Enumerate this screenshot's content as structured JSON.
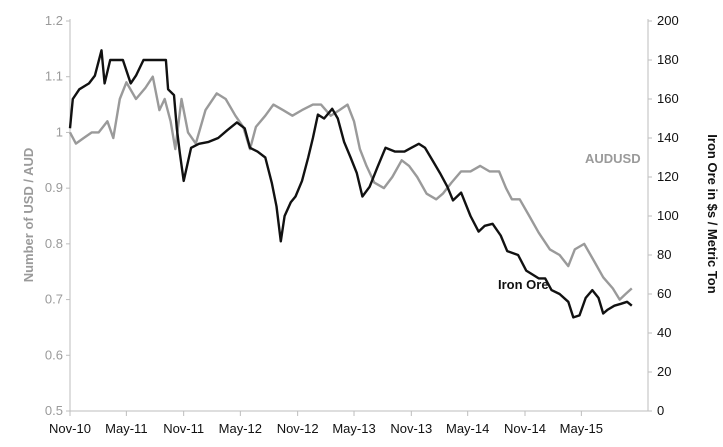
{
  "chart_data": {
    "type": "line",
    "x_ticks": [
      "Nov-10",
      "May-11",
      "Nov-11",
      "May-12",
      "Nov-12",
      "May-13",
      "Nov-13",
      "May-14",
      "Nov-14",
      "May-15"
    ],
    "ylabel_left": "Number of USD / AUD",
    "ylabel_right": "Iron Ore in $s / Metric Ton",
    "ylim_left": [
      0.5,
      1.2
    ],
    "ylim_right": [
      0,
      200
    ],
    "yticks_left": [
      "0.5",
      "0.6",
      "0.7",
      "0.8",
      "0.9",
      "1",
      "1.1",
      "1.2"
    ],
    "yticks_right": [
      "0",
      "20",
      "40",
      "60",
      "80",
      "100",
      "120",
      "140",
      "160",
      "180",
      "200"
    ],
    "grid": false,
    "series": [
      {
        "name": "AUDUSD",
        "axis": "left",
        "color": "#9a9a9a",
        "points": [
          [
            "2010-11-01",
            1.0
          ],
          [
            "2010-11-20",
            0.98
          ],
          [
            "2010-12-15",
            0.99
          ],
          [
            "2011-01-10",
            1.0
          ],
          [
            "2011-02-01",
            1.0
          ],
          [
            "2011-03-01",
            1.02
          ],
          [
            "2011-03-20",
            0.99
          ],
          [
            "2011-04-10",
            1.06
          ],
          [
            "2011-05-01",
            1.09
          ],
          [
            "2011-06-01",
            1.06
          ],
          [
            "2011-07-01",
            1.08
          ],
          [
            "2011-07-25",
            1.1
          ],
          [
            "2011-08-15",
            1.04
          ],
          [
            "2011-09-01",
            1.06
          ],
          [
            "2011-09-20",
            1.02
          ],
          [
            "2011-10-05",
            0.97
          ],
          [
            "2011-10-25",
            1.06
          ],
          [
            "2011-11-15",
            1.0
          ],
          [
            "2011-12-10",
            0.98
          ],
          [
            "2012-01-10",
            1.04
          ],
          [
            "2012-02-15",
            1.07
          ],
          [
            "2012-03-15",
            1.06
          ],
          [
            "2012-04-15",
            1.03
          ],
          [
            "2012-05-10",
            1.01
          ],
          [
            "2012-06-01",
            0.97
          ],
          [
            "2012-06-20",
            1.01
          ],
          [
            "2012-07-20",
            1.03
          ],
          [
            "2012-08-15",
            1.05
          ],
          [
            "2012-09-15",
            1.04
          ],
          [
            "2012-10-15",
            1.03
          ],
          [
            "2012-11-15",
            1.04
          ],
          [
            "2012-12-20",
            1.05
          ],
          [
            "2013-01-15",
            1.05
          ],
          [
            "2013-02-15",
            1.03
          ],
          [
            "2013-03-15",
            1.04
          ],
          [
            "2013-04-10",
            1.05
          ],
          [
            "2013-05-01",
            1.02
          ],
          [
            "2013-05-20",
            0.97
          ],
          [
            "2013-06-10",
            0.94
          ],
          [
            "2013-07-05",
            0.91
          ],
          [
            "2013-08-05",
            0.9
          ],
          [
            "2013-09-01",
            0.92
          ],
          [
            "2013-10-01",
            0.95
          ],
          [
            "2013-10-25",
            0.94
          ],
          [
            "2013-11-20",
            0.92
          ],
          [
            "2013-12-20",
            0.89
          ],
          [
            "2014-01-20",
            0.88
          ],
          [
            "2014-02-10",
            0.89
          ],
          [
            "2014-03-10",
            0.91
          ],
          [
            "2014-04-10",
            0.93
          ],
          [
            "2014-05-10",
            0.93
          ],
          [
            "2014-06-10",
            0.94
          ],
          [
            "2014-07-10",
            0.93
          ],
          [
            "2014-08-10",
            0.93
          ],
          [
            "2014-09-01",
            0.9
          ],
          [
            "2014-09-20",
            0.88
          ],
          [
            "2014-10-15",
            0.88
          ],
          [
            "2014-11-15",
            0.85
          ],
          [
            "2014-12-15",
            0.82
          ],
          [
            "2015-01-20",
            0.79
          ],
          [
            "2015-02-20",
            0.78
          ],
          [
            "2015-03-20",
            0.76
          ],
          [
            "2015-04-10",
            0.79
          ],
          [
            "2015-05-10",
            0.8
          ],
          [
            "2015-06-10",
            0.77
          ],
          [
            "2015-07-10",
            0.74
          ],
          [
            "2015-08-10",
            0.72
          ],
          [
            "2015-09-01",
            0.7
          ],
          [
            "2015-09-20",
            0.71
          ],
          [
            "2015-10-10",
            0.72
          ]
        ]
      },
      {
        "name": "Iron Ore",
        "axis": "right",
        "color": "#111111",
        "points": [
          [
            "2010-11-01",
            145
          ],
          [
            "2010-11-10",
            160
          ],
          [
            "2010-12-01",
            165
          ],
          [
            "2011-01-01",
            168
          ],
          [
            "2011-01-20",
            172
          ],
          [
            "2011-02-10",
            185
          ],
          [
            "2011-02-20",
            168
          ],
          [
            "2011-03-10",
            180
          ],
          [
            "2011-04-20",
            180
          ],
          [
            "2011-05-15",
            168
          ],
          [
            "2011-06-01",
            172
          ],
          [
            "2011-06-25",
            180
          ],
          [
            "2011-08-01",
            180
          ],
          [
            "2011-09-05",
            180
          ],
          [
            "2011-09-12",
            165
          ],
          [
            "2011-10-01",
            162
          ],
          [
            "2011-10-10",
            145
          ],
          [
            "2011-10-20",
            132
          ],
          [
            "2011-11-01",
            118
          ],
          [
            "2011-11-25",
            135
          ],
          [
            "2011-12-20",
            137
          ],
          [
            "2012-01-20",
            138
          ],
          [
            "2012-02-20",
            140
          ],
          [
            "2012-03-20",
            144
          ],
          [
            "2012-04-20",
            148
          ],
          [
            "2012-05-15",
            145
          ],
          [
            "2012-06-01",
            135
          ],
          [
            "2012-06-25",
            133
          ],
          [
            "2012-07-20",
            130
          ],
          [
            "2012-08-10",
            117
          ],
          [
            "2012-08-25",
            105
          ],
          [
            "2012-09-08",
            87
          ],
          [
            "2012-09-20",
            100
          ],
          [
            "2012-10-10",
            107
          ],
          [
            "2012-10-25",
            110
          ],
          [
            "2012-11-15",
            118
          ],
          [
            "2012-12-05",
            130
          ],
          [
            "2012-12-20",
            140
          ],
          [
            "2013-01-05",
            152
          ],
          [
            "2013-01-25",
            150
          ],
          [
            "2013-02-20",
            155
          ],
          [
            "2013-03-10",
            150
          ],
          [
            "2013-03-30",
            138
          ],
          [
            "2013-04-20",
            130
          ],
          [
            "2013-05-10",
            122
          ],
          [
            "2013-05-28",
            110
          ],
          [
            "2013-06-20",
            115
          ],
          [
            "2013-07-15",
            125
          ],
          [
            "2013-08-10",
            135
          ],
          [
            "2013-09-10",
            133
          ],
          [
            "2013-10-10",
            133
          ],
          [
            "2013-11-01",
            135
          ],
          [
            "2013-11-25",
            137
          ],
          [
            "2013-12-15",
            135
          ],
          [
            "2014-01-10",
            128
          ],
          [
            "2014-02-01",
            122
          ],
          [
            "2014-02-25",
            115
          ],
          [
            "2014-03-15",
            108
          ],
          [
            "2014-04-10",
            112
          ],
          [
            "2014-05-10",
            100
          ],
          [
            "2014-06-05",
            92
          ],
          [
            "2014-06-25",
            95
          ],
          [
            "2014-07-20",
            96
          ],
          [
            "2014-08-15",
            90
          ],
          [
            "2014-09-05",
            82
          ],
          [
            "2014-10-10",
            80
          ],
          [
            "2014-11-05",
            72
          ],
          [
            "2014-11-25",
            70
          ],
          [
            "2014-12-15",
            68
          ],
          [
            "2015-01-05",
            68
          ],
          [
            "2015-01-25",
            62
          ],
          [
            "2015-02-20",
            60
          ],
          [
            "2015-03-20",
            56
          ],
          [
            "2015-04-05",
            48
          ],
          [
            "2015-04-25",
            49
          ],
          [
            "2015-05-15",
            58
          ],
          [
            "2015-06-05",
            62
          ],
          [
            "2015-06-25",
            58
          ],
          [
            "2015-07-10",
            50
          ],
          [
            "2015-07-25",
            52
          ],
          [
            "2015-08-15",
            54
          ],
          [
            "2015-09-05",
            55
          ],
          [
            "2015-09-25",
            56
          ],
          [
            "2015-10-10",
            54
          ]
        ]
      }
    ],
    "annotations": [
      {
        "text": "AUDUSD",
        "series": "AUDUSD"
      },
      {
        "text": "Iron Ore",
        "series": "Iron Ore"
      }
    ]
  }
}
